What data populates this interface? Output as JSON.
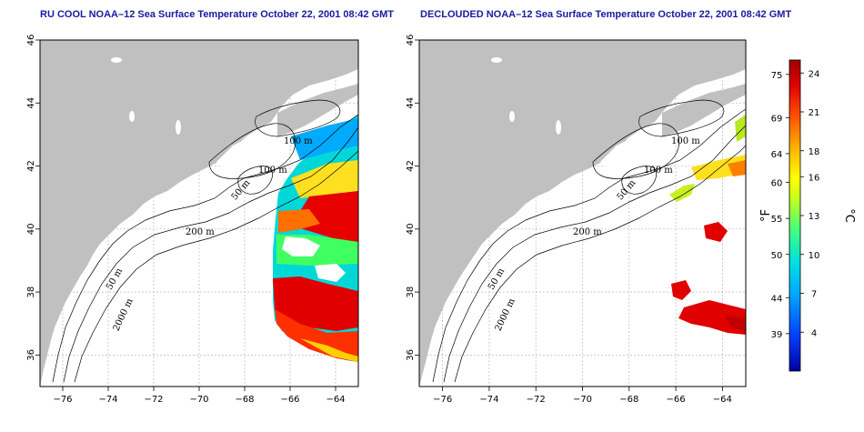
{
  "titles": {
    "left": "RU COOL NOAA–12 Sea Surface Temperature October 22, 2001 08:42 GMT",
    "right": "DECLOUDED NOAA–12 Sea Surface Temperature October 22, 2001 08:42 GMT"
  },
  "axes": {
    "x_ticks": [
      "−76",
      "−74",
      "−72",
      "−70",
      "−68",
      "−66",
      "−64"
    ],
    "x_values": [
      -76,
      -74,
      -72,
      -70,
      -68,
      -66,
      -64
    ],
    "y_ticks": [
      "36",
      "38",
      "40",
      "42",
      "44",
      "46"
    ],
    "y_values": [
      36,
      38,
      40,
      42,
      44,
      46
    ],
    "lon_range": [
      -77,
      -63
    ],
    "lat_range": [
      35,
      46
    ]
  },
  "contour_labels": {
    "left": [
      "100 m",
      "100 m",
      "50 m",
      "200 m",
      "50 m",
      "2000 m"
    ],
    "right": [
      "100 m",
      "100 m",
      "50 m",
      "200 m",
      "50 m",
      "2000 m"
    ]
  },
  "colorbar": {
    "fahrenheit_ticks": [
      "75",
      "69",
      "64",
      "60",
      "55",
      "50",
      "44",
      "39"
    ],
    "fahrenheit_values": [
      75,
      69,
      64,
      60,
      55,
      50,
      44,
      39
    ],
    "celsius_ticks": [
      "24",
      "21",
      "18",
      "16",
      "13",
      "10",
      "7",
      "4"
    ],
    "celsius_values": [
      24,
      21,
      18,
      16,
      13,
      10,
      7,
      4
    ],
    "unit_left": "°F",
    "unit_right": "°C",
    "range_c": [
      1,
      25
    ],
    "colors": [
      "#0000a0",
      "#0044ff",
      "#00aaff",
      "#00e0e0",
      "#40ff80",
      "#c0ff20",
      "#ffff00",
      "#ffb000",
      "#ff5000",
      "#e00000",
      "#a00000"
    ]
  },
  "colors": {
    "land": "#c0c0c0",
    "grid": "#b8b8b8",
    "title": "#1a1aa0"
  }
}
